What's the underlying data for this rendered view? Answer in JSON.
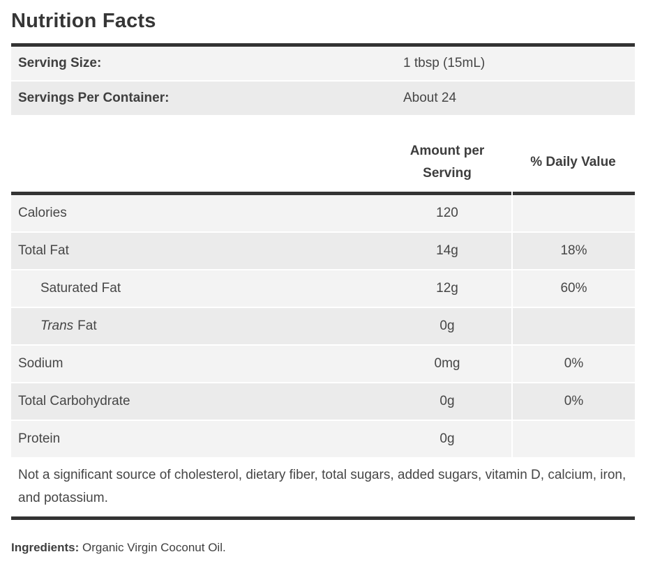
{
  "title": "Nutrition Facts",
  "serving_info": {
    "rows": [
      {
        "label": "Serving Size:",
        "value": "1 tbsp (15mL)"
      },
      {
        "label": "Servings Per Container:",
        "value": "About 24"
      }
    ]
  },
  "nutrition_table": {
    "header": {
      "amount": "Amount per Serving",
      "daily_value": "% Daily Value"
    },
    "rows": [
      {
        "label": "Calories",
        "amount": "120",
        "daily_value": ""
      },
      {
        "label": "Total Fat",
        "amount": "14g",
        "daily_value": "18%"
      },
      {
        "label": "Saturated Fat",
        "amount": "12g",
        "daily_value": "60%"
      },
      {
        "label_italic": "Trans",
        "label": "Fat",
        "amount": "0g",
        "daily_value": ""
      },
      {
        "label": "Sodium",
        "amount": "0mg",
        "daily_value": "0%"
      },
      {
        "label": "Total Carbohydrate",
        "amount": "0g",
        "daily_value": "0%"
      },
      {
        "label": "Protein",
        "amount": "0g",
        "daily_value": ""
      }
    ],
    "footnote": "Not a significant source of cholesterol, dietary fiber, total sugars, added sugars, vitamin D, calcium, iron, and potassium."
  },
  "ingredients": {
    "label": "Ingredients:",
    "value": "Organic Virgin Coconut Oil."
  },
  "colors": {
    "rule": "#333333",
    "row_light": "#f3f3f3",
    "row_dark": "#ebebeb",
    "text": "#464646",
    "title": "#363636"
  }
}
